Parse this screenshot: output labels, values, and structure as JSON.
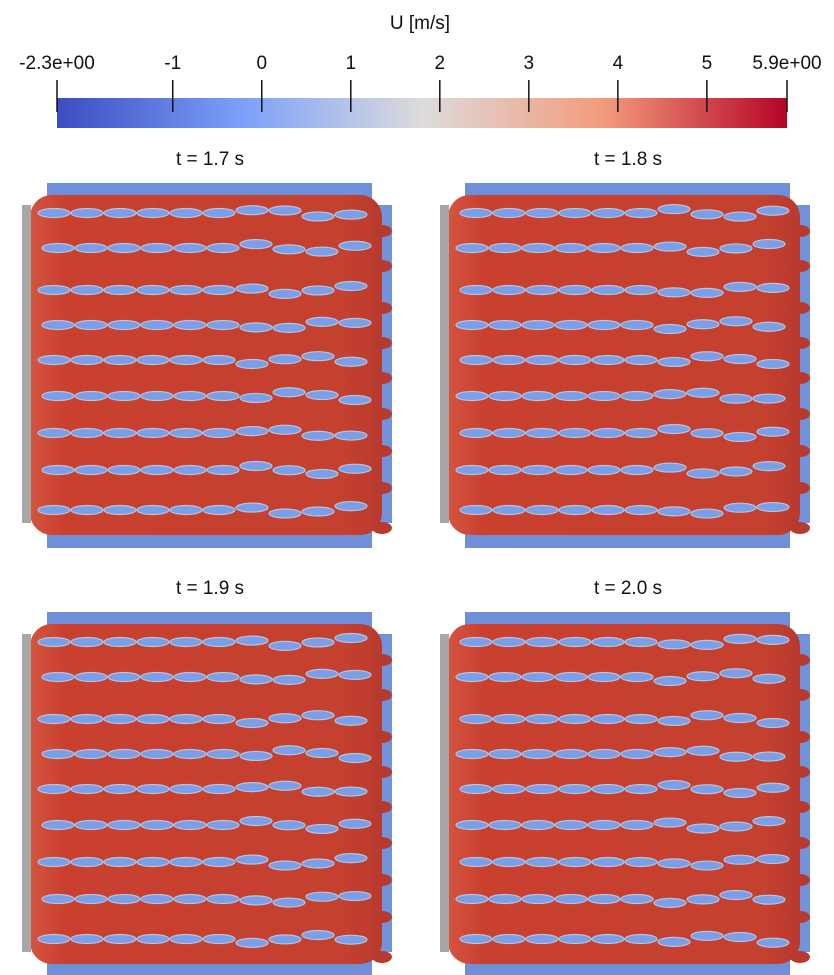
{
  "colorbar": {
    "title": "U [m/s]",
    "lim": [
      -2.3,
      5.9
    ],
    "ticks": [
      {
        "value": -2.3,
        "label": "-2.3e+00"
      },
      -1,
      0,
      1,
      2,
      3,
      4,
      5,
      {
        "value": 5.9,
        "label": "5.9e+00"
      }
    ]
  },
  "panels": [
    {
      "title": "t = 1.7 s"
    },
    {
      "title": "t = 1.8 s"
    },
    {
      "title": "t = 1.9 s"
    },
    {
      "title": "t = 2.0 s"
    }
  ]
}
